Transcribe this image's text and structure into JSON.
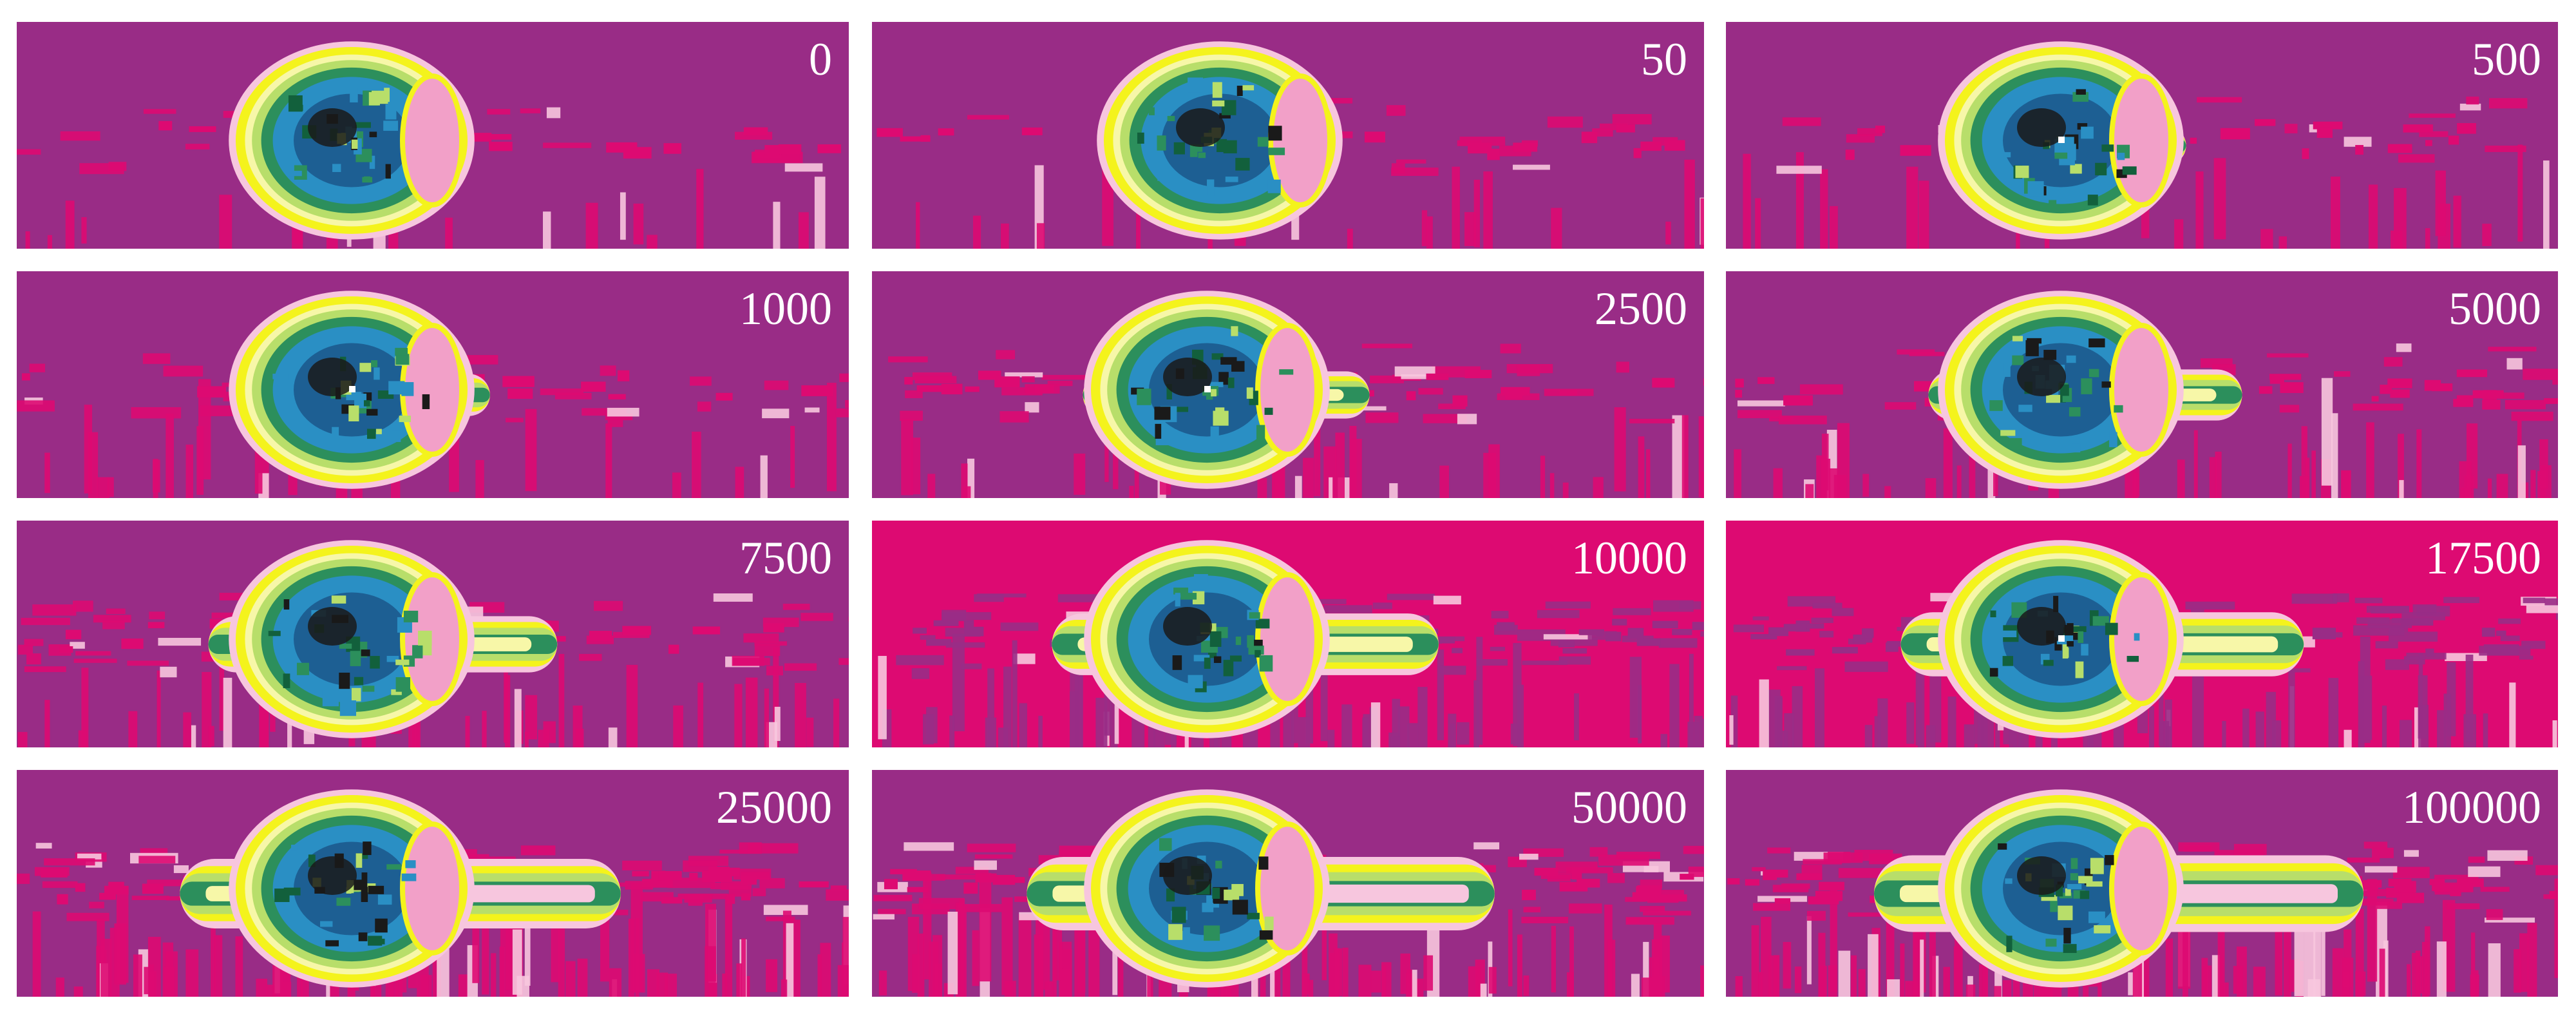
{
  "figure": {
    "panels": [
      {
        "label": "0",
        "background": "#992c86",
        "spread": 0.0
      },
      {
        "label": "50",
        "background": "#992c86",
        "spread": 0.0
      },
      {
        "label": "500",
        "background": "#992c86",
        "spread": 0.05
      },
      {
        "label": "1000",
        "background": "#992c86",
        "spread": 0.12
      },
      {
        "label": "2500",
        "background": "#992c86",
        "spread": 0.25
      },
      {
        "label": "5000",
        "background": "#992c86",
        "spread": 0.35
      },
      {
        "label": "7500",
        "background": "#992c86",
        "spread": 0.48
      },
      {
        "label": "10000",
        "background": "#dd0a72",
        "spread": 0.62
      },
      {
        "label": "17500",
        "background": "#dd0a72",
        "spread": 0.68
      },
      {
        "label": "25000",
        "background": "#992c86",
        "spread": 0.82
      },
      {
        "label": "50000",
        "background": "#992c86",
        "spread": 0.92
      },
      {
        "label": "100000",
        "background": "#992c86",
        "spread": 1.0
      }
    ],
    "palette": {
      "magenta": "#dd0a72",
      "purple": "#992c86",
      "pink": "#f2a0c8",
      "light_pink": "#f7c6de",
      "yellow": "#f4f31c",
      "pale_yellow": "#f7f7a8",
      "light_green": "#b8de6a",
      "green": "#2c8f5c",
      "dark_green": "#12603c",
      "blue": "#2a8fc4",
      "dark_blue": "#1d5f93",
      "black": "#1a1a1a",
      "white": "#ffffff"
    }
  }
}
